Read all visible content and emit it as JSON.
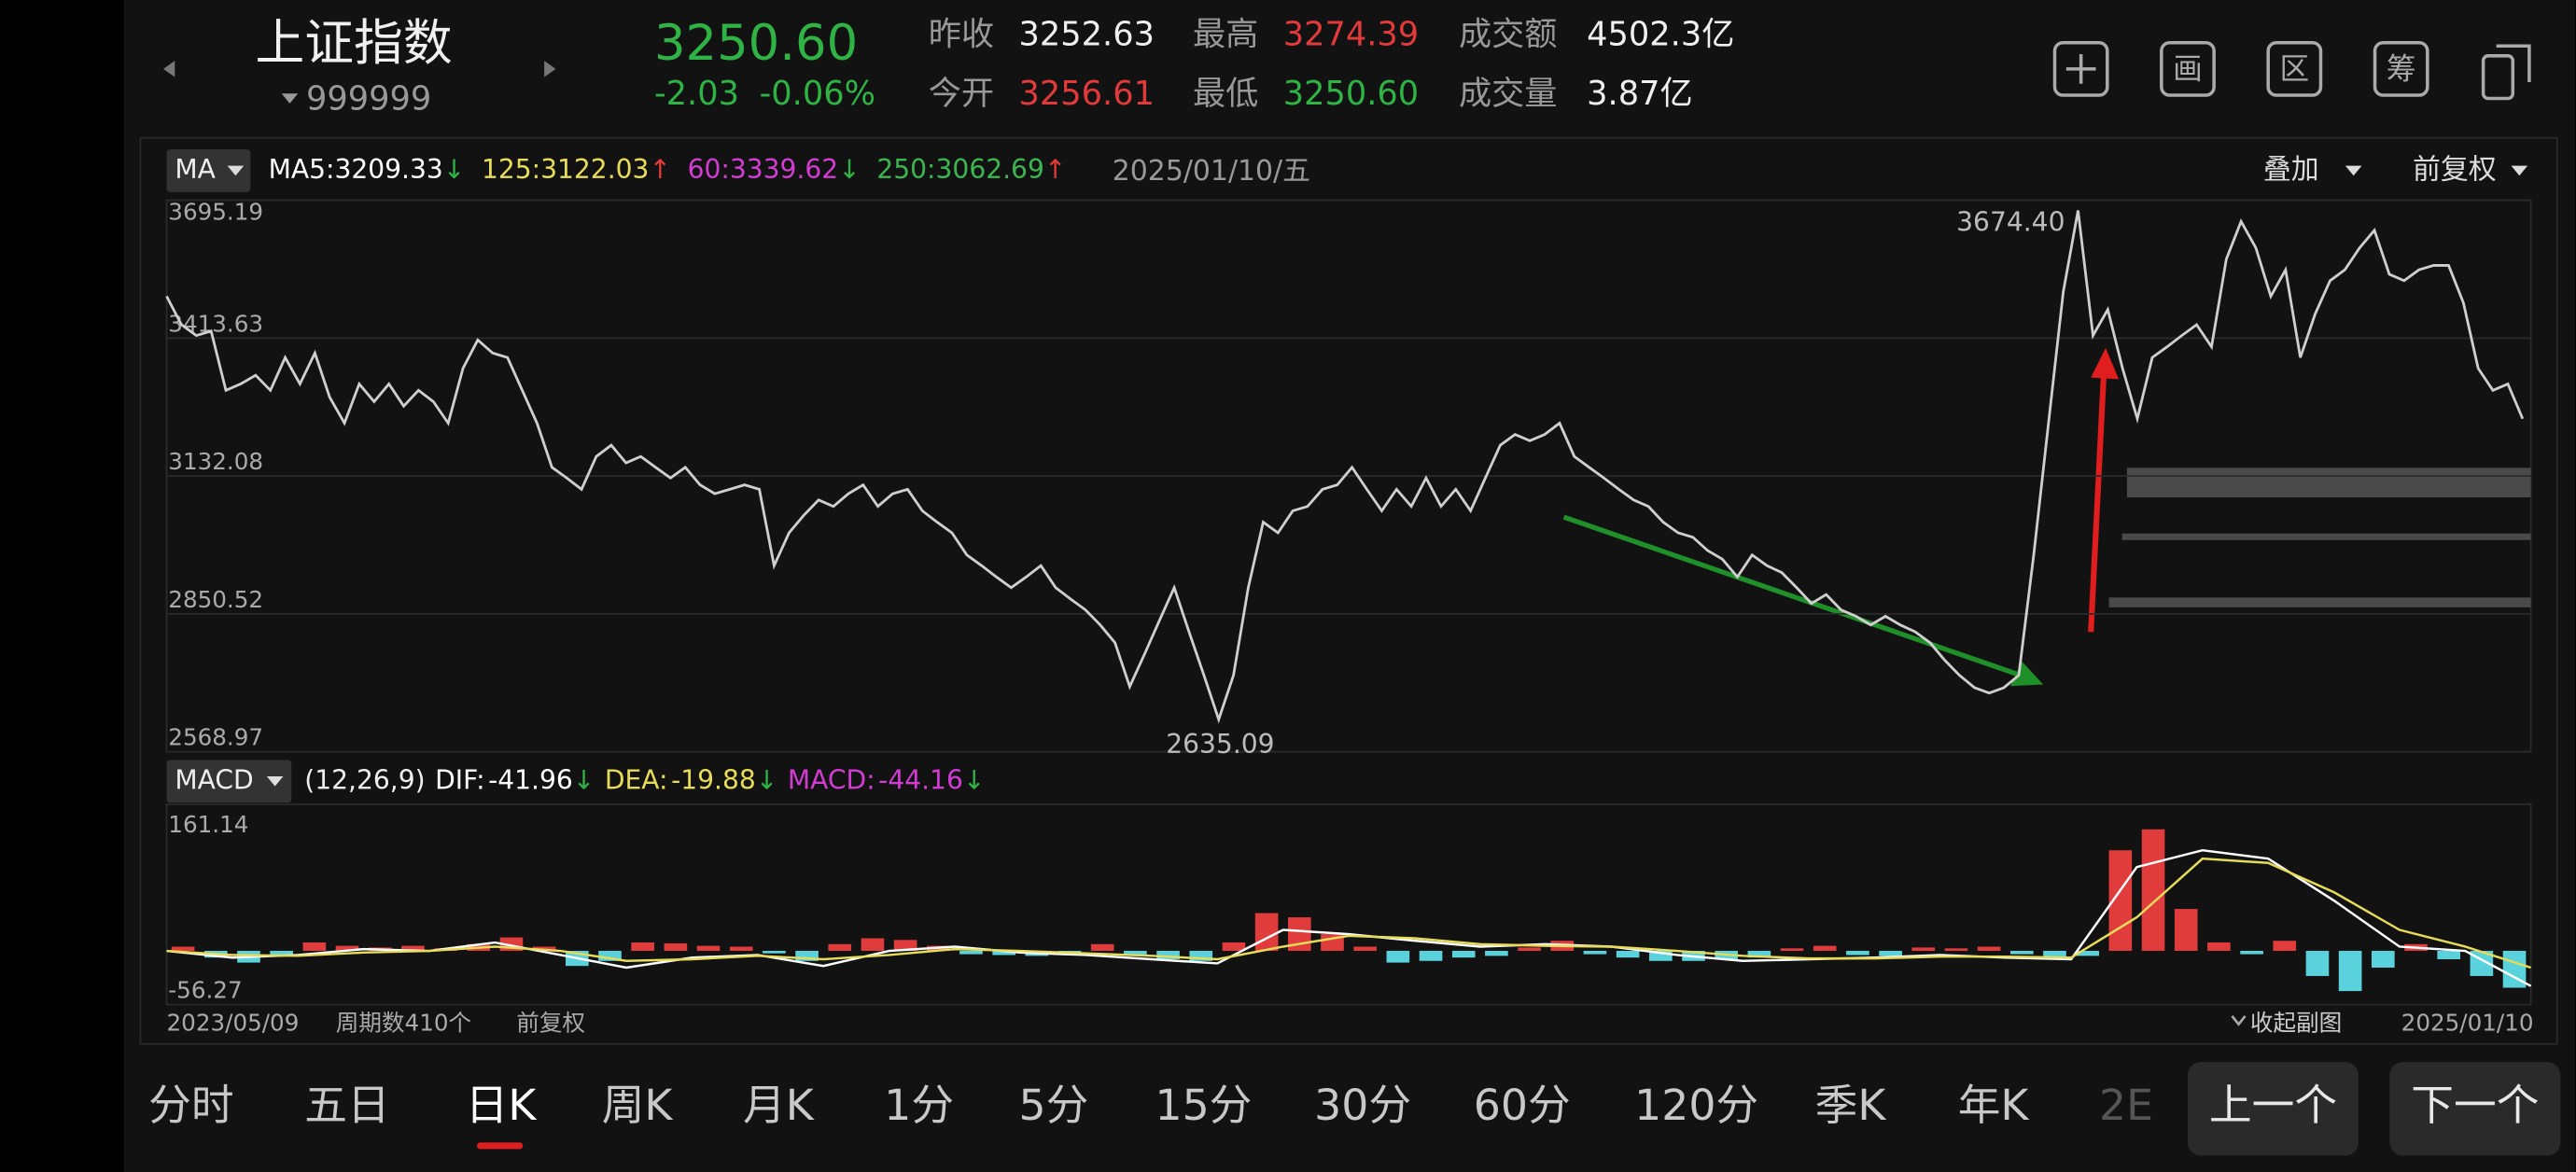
{
  "header": {
    "name": "上证指数",
    "code": "999999",
    "price": "3250.60",
    "change": "-2.03",
    "change_pct": "-0.06%",
    "stats": [
      [
        "昨收",
        "3252.63"
      ],
      [
        "最高",
        "3274.39"
      ],
      [
        "成交额",
        "4502.3亿"
      ],
      [
        "今开",
        "3256.61"
      ],
      [
        "最低",
        "3250.60"
      ],
      [
        "成交量",
        "3.87亿"
      ]
    ]
  },
  "toolbar": [
    "画",
    "区",
    "筹"
  ],
  "ma_legend": {
    "selector": "MA",
    "items": [
      {
        "label": "MA5:",
        "value": "3209.33",
        "arrow": "↓",
        "color": "#ffffff",
        "arrow_color": "#2fb344"
      },
      {
        "label": "125:",
        "value": "3122.03",
        "arrow": "↑",
        "color": "#e6dc5a",
        "arrow_color": "#e23a3a"
      },
      {
        "label": "60:",
        "value": "3339.62",
        "arrow": "↓",
        "color": "#d23cd2",
        "arrow_color": "#2fb344"
      },
      {
        "label": "250:",
        "value": "3062.69",
        "arrow": "↑",
        "color": "#3cb450",
        "arrow_color": "#e23a3a"
      }
    ],
    "date": "2025/01/10/五",
    "overlay": "叠加",
    "adjust": "前复权"
  },
  "macd_legend": {
    "selector": "MACD",
    "params": "(12,26,9)",
    "items": [
      {
        "label": "DIF:",
        "value": "-41.96",
        "arrow": "↓",
        "color": "#ffffff",
        "arrow_color": "#2fb344"
      },
      {
        "label": "DEA:",
        "value": "-19.88",
        "arrow": "↓",
        "color": "#e6dc5a",
        "arrow_color": "#2fb344"
      },
      {
        "label": "MACD:",
        "value": "-44.16",
        "arrow": "↓",
        "color": "#d23cd2",
        "arrow_color": "#2fb344"
      }
    ]
  },
  "chart_data": [
    {
      "type": "line",
      "color": "#cfcfcf",
      "ylim": [
        2568.97,
        3695.19
      ],
      "yticks": [
        3695.19,
        3413.63,
        3132.08,
        2850.52,
        2568.97
      ],
      "grid": true,
      "annotations": [
        {
          "value": 3674.4,
          "label": "3674.40"
        },
        {
          "value": 2635.09,
          "label": "2635.09"
        }
      ],
      "values": [
        3499,
        3441,
        3419,
        3428,
        3307,
        3320,
        3338,
        3307,
        3374,
        3320,
        3383,
        3293,
        3240,
        3320,
        3284,
        3320,
        3275,
        3307,
        3284,
        3240,
        3352,
        3410,
        3383,
        3374,
        3307,
        3240,
        3150,
        3128,
        3105,
        3172,
        3195,
        3159,
        3172,
        3150,
        3128,
        3150,
        3114,
        3096,
        3105,
        3114,
        3105,
        2949,
        3016,
        3052,
        3083,
        3070,
        3096,
        3114,
        3070,
        3096,
        3105,
        3061,
        3038,
        3016,
        2971,
        2949,
        2926,
        2904,
        2926,
        2949,
        2904,
        2881,
        2859,
        2828,
        2792,
        2702,
        2769,
        2837,
        2904,
        2814,
        2725,
        2635.09,
        2725,
        2904,
        3038,
        3016,
        3061,
        3070,
        3105,
        3114,
        3150,
        3105,
        3061,
        3105,
        3070,
        3128,
        3070,
        3105,
        3061,
        3128,
        3195,
        3217,
        3204,
        3217,
        3240,
        3172,
        3150,
        3128,
        3105,
        3083,
        3070,
        3038,
        3016,
        3007,
        2980,
        2962,
        2926,
        2971,
        2949,
        2935,
        2904,
        2872,
        2890,
        2859,
        2846,
        2828,
        2846,
        2828,
        2814,
        2792,
        2756,
        2725,
        2700,
        2689,
        2700,
        2725,
        2971,
        3240,
        3508,
        3674.4,
        3419,
        3472,
        3352,
        3249,
        3374,
        3396,
        3419,
        3441,
        3396,
        3575,
        3652,
        3598,
        3499,
        3553,
        3374,
        3463,
        3531,
        3553,
        3598,
        3634,
        3544,
        3531,
        3553,
        3562,
        3562,
        3486,
        3352,
        3307,
        3320,
        3249
      ]
    },
    {
      "type": "macd",
      "ylim": [
        -56.27,
        161.14
      ],
      "yticks": [
        161.14,
        -56.27
      ],
      "up_color": "#e03c3c",
      "down_color": "#5ad2dc",
      "histogram": [
        5,
        -8,
        -14,
        -6,
        10,
        6,
        4,
        6,
        3,
        8,
        16,
        5,
        -18,
        -12,
        10,
        9,
        6,
        5,
        -3,
        -12,
        8,
        15,
        13,
        6,
        -4,
        -5,
        -6,
        -3,
        8,
        -5,
        -10,
        -12,
        10,
        45,
        40,
        20,
        5,
        -14,
        -12,
        -8,
        -6,
        4,
        12,
        -4,
        -8,
        -12,
        -12,
        -10,
        -8,
        3,
        6,
        -5,
        -6,
        4,
        3,
        5,
        -4,
        -8,
        -6,
        120,
        145,
        50,
        10,
        -4,
        12,
        -30,
        -48,
        -20,
        8,
        -10,
        -30,
        -44
      ],
      "series": [
        {
          "color": "#ffffff",
          "values": [
            0,
            -8,
            -5,
            2,
            0,
            10,
            -5,
            -20,
            -8,
            -5,
            -18,
            0,
            5,
            -2,
            -5,
            -10,
            -15,
            25,
            20,
            12,
            5,
            8,
            5,
            -5,
            -12,
            -10,
            -8,
            -5,
            -8,
            -10,
            100,
            120,
            110,
            60,
            5,
            0,
            -42
          ]
        },
        {
          "color": "#e6dc5a",
          "values": [
            0,
            -5,
            -6,
            -2,
            0,
            5,
            0,
            -12,
            -10,
            -6,
            -10,
            -5,
            2,
            0,
            -3,
            -6,
            -10,
            5,
            18,
            15,
            8,
            6,
            5,
            0,
            -6,
            -9,
            -9,
            -7,
            -7,
            -8,
            40,
            110,
            105,
            70,
            25,
            5,
            -20
          ]
        }
      ]
    }
  ],
  "footer": {
    "start": "2023/05/09",
    "periods": "周期数410个",
    "adjust": "前复权",
    "collapse": "收起副图",
    "end": "2025/01/10"
  },
  "tabs": [
    "分时",
    "五日",
    "日K",
    "周K",
    "月K",
    "1分",
    "5分",
    "15分",
    "30分",
    "60分",
    "120分",
    "季K",
    "年K",
    "2E"
  ],
  "buttons": [
    "上一个",
    "下一个"
  ]
}
